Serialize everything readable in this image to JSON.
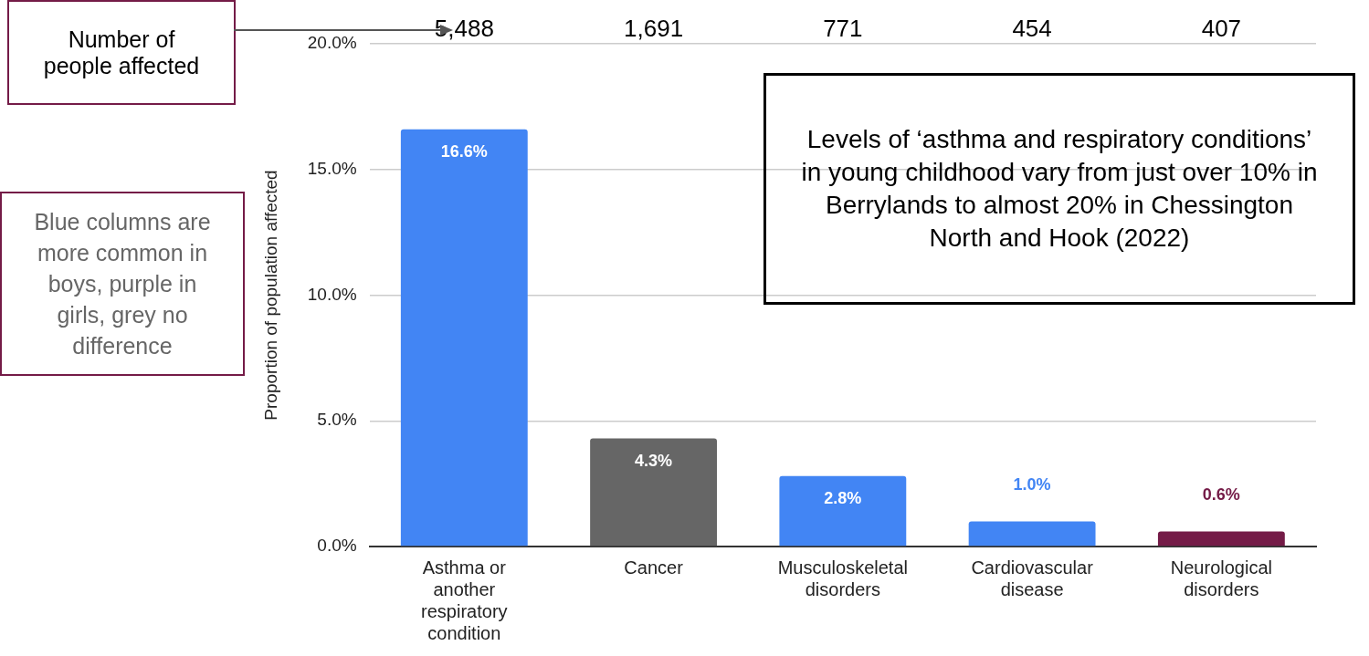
{
  "chart_data": {
    "type": "bar",
    "ylabel": "Proportion of population affected",
    "categories": [
      "Asthma or another respiratory condition",
      "Cancer",
      "Musculoskeletal disorders",
      "Cardiovascular disease",
      "Neurological disorders"
    ],
    "values": [
      16.6,
      4.3,
      2.8,
      1.0,
      0.6
    ],
    "colors": [
      "#4285f4",
      "#666666",
      "#4285f4",
      "#4285f4",
      "#741b47"
    ],
    "value_labels": [
      "16.6%",
      "4.3%",
      "2.8%",
      "1.0%",
      "0.6%"
    ],
    "ylim": [
      0,
      20
    ],
    "yticks": [
      {
        "value": 0,
        "label": "0.0%"
      },
      {
        "value": 5,
        "label": "5.0%"
      },
      {
        "value": 10,
        "label": "10.0%"
      },
      {
        "value": 15,
        "label": "15.0%"
      },
      {
        "value": 20,
        "label": "20.0%"
      }
    ],
    "grid": "y",
    "legend": false,
    "annotations": [
      "Number of people affected",
      "Blue columns are more common in boys, purple in girls, grey no difference",
      "Levels of ‘asthma and respiratory conditions’ in young childhood vary from just over 10% in Berrylands to almost 20% in Chessington North and Hook (2022)",
      "5,488",
      "1,691",
      "771",
      "454",
      "407"
    ]
  }
}
